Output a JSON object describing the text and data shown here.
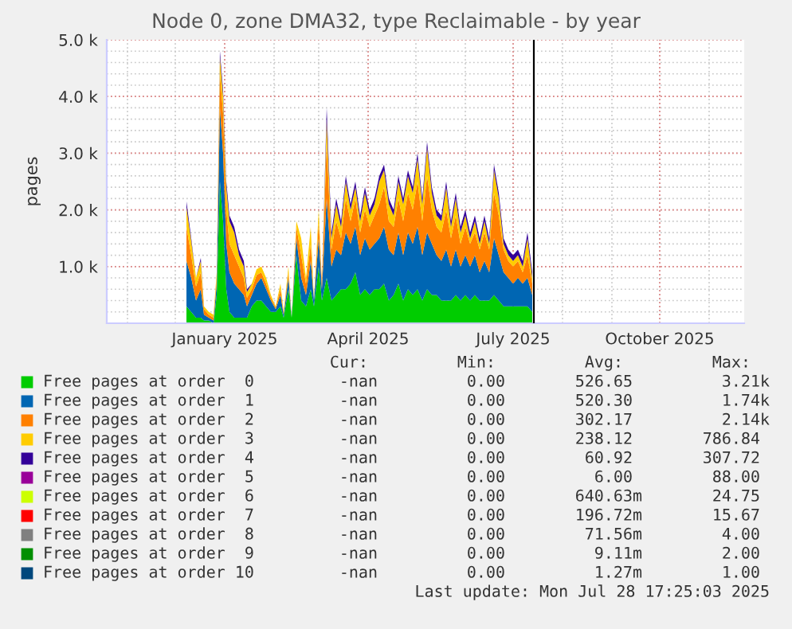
{
  "chart_data": {
    "type": "area",
    "stacked": true,
    "title": "Node 0, zone DMA32, type Reclaimable - by year",
    "ylabel": "pages",
    "x": [
      "2024-12-08",
      "2024-12-11",
      "2024-12-14",
      "2024-12-17",
      "2024-12-19",
      "2024-12-22",
      "2024-12-25",
      "2024-12-27",
      "2024-12-29",
      "2024-12-31",
      "2025-01-02",
      "2025-01-04",
      "2025-01-07",
      "2025-01-10",
      "2025-01-13",
      "2025-01-15",
      "2025-01-18",
      "2025-01-21",
      "2025-01-24",
      "2025-01-27",
      "2025-01-30",
      "2025-02-02",
      "2025-02-05",
      "2025-02-07",
      "2025-02-10",
      "2025-02-12",
      "2025-02-15",
      "2025-02-18",
      "2025-02-21",
      "2025-02-24",
      "2025-02-26",
      "2025-03-01",
      "2025-03-03",
      "2025-03-06",
      "2025-03-09",
      "2025-03-12",
      "2025-03-15",
      "2025-03-18",
      "2025-03-21",
      "2025-03-24",
      "2025-03-27",
      "2025-03-30",
      "2025-04-02",
      "2025-04-05",
      "2025-04-08",
      "2025-04-11",
      "2025-04-14",
      "2025-04-17",
      "2025-04-20",
      "2025-04-23",
      "2025-04-26",
      "2025-04-29",
      "2025-05-02",
      "2025-05-05",
      "2025-05-08",
      "2025-05-11",
      "2025-05-14",
      "2025-05-17",
      "2025-05-20",
      "2025-05-23",
      "2025-05-26",
      "2025-05-29",
      "2025-06-01",
      "2025-06-04",
      "2025-06-07",
      "2025-06-10",
      "2025-06-13",
      "2025-06-16",
      "2025-06-19",
      "2025-06-22",
      "2025-06-25",
      "2025-06-28",
      "2025-07-01",
      "2025-07-04",
      "2025-07-07",
      "2025-07-10",
      "2025-07-13"
    ],
    "series": [
      {
        "name": "Free pages at order  0",
        "color": "#00cc00",
        "values": [
          300,
          200,
          100,
          100,
          50,
          50,
          0,
          500,
          2500,
          1800,
          600,
          200,
          100,
          100,
          100,
          100,
          300,
          400,
          400,
          300,
          200,
          200,
          300,
          100,
          600,
          100,
          1200,
          400,
          300,
          600,
          300,
          1000,
          400,
          800,
          400,
          500,
          600,
          600,
          700,
          900,
          500,
          600,
          500,
          600,
          600,
          700,
          400,
          500,
          700,
          400,
          600,
          500,
          600,
          400,
          600,
          500,
          500,
          400,
          400,
          400,
          500,
          400,
          500,
          400,
          500,
          400,
          400,
          400,
          500,
          400,
          300,
          300,
          300,
          300,
          300,
          300,
          200
        ]
      },
      {
        "name": "Free pages at order  1",
        "color": "#0066b3",
        "values": [
          800,
          600,
          300,
          500,
          100,
          50,
          50,
          200,
          1300,
          1200,
          800,
          700,
          600,
          500,
          400,
          200,
          200,
          300,
          400,
          300,
          200,
          50,
          200,
          50,
          200,
          0,
          300,
          400,
          200,
          500,
          100,
          500,
          200,
          1400,
          600,
          800,
          600,
          1000,
          700,
          800,
          700,
          900,
          800,
          800,
          900,
          1000,
          900,
          700,
          900,
          800,
          1000,
          900,
          1100,
          800,
          1000,
          900,
          700,
          700,
          900,
          600,
          800,
          600,
          700,
          600,
          700,
          500,
          700,
          500,
          1000,
          800,
          600,
          500,
          400,
          500,
          400,
          500,
          300
        ]
      },
      {
        "name": "Free pages at order  2",
        "color": "#ff8000",
        "values": [
          600,
          400,
          250,
          300,
          100,
          50,
          50,
          100,
          600,
          700,
          600,
          500,
          500,
          400,
          300,
          150,
          100,
          150,
          100,
          100,
          50,
          30,
          100,
          30,
          100,
          0,
          200,
          400,
          200,
          300,
          0,
          300,
          100,
          1000,
          300,
          500,
          300,
          600,
          400,
          500,
          400,
          500,
          400,
          500,
          600,
          700,
          500,
          500,
          600,
          600,
          700,
          600,
          800,
          600,
          1000,
          600,
          500,
          500,
          700,
          500,
          600,
          400,
          500,
          400,
          400,
          400,
          500,
          400,
          800,
          700,
          400,
          300,
          300,
          300,
          200,
          400,
          200
        ]
      },
      {
        "name": "Free pages at order  3",
        "color": "#ffcc00",
        "values": [
          350,
          250,
          150,
          200,
          50,
          50,
          50,
          100,
          300,
          300,
          400,
          400,
          400,
          200,
          200,
          100,
          100,
          100,
          100,
          100,
          50,
          20,
          100,
          20,
          100,
          0,
          100,
          300,
          100,
          300,
          0,
          200,
          0,
          400,
          200,
          300,
          200,
          300,
          200,
          200,
          200,
          300,
          200,
          200,
          400,
          300,
          300,
          200,
          300,
          300,
          300,
          300,
          400,
          300,
          500,
          300,
          200,
          200,
          400,
          200,
          300,
          200,
          200,
          100,
          200,
          100,
          200,
          100,
          400,
          300,
          100,
          100,
          100,
          100,
          100,
          300,
          100
        ]
      },
      {
        "name": "Free pages at order  4",
        "color": "#330099",
        "values": [
          100,
          50,
          0,
          50,
          0,
          0,
          0,
          0,
          100,
          100,
          100,
          100,
          100,
          100,
          100,
          50,
          0,
          0,
          0,
          0,
          0,
          0,
          0,
          0,
          0,
          0,
          0,
          0,
          0,
          0,
          0,
          0,
          0,
          200,
          100,
          100,
          100,
          100,
          100,
          100,
          100,
          100,
          100,
          100,
          100,
          100,
          100,
          100,
          100,
          100,
          100,
          100,
          100,
          100,
          100,
          100,
          100,
          100,
          100,
          100,
          100,
          100,
          100,
          100,
          100,
          100,
          100,
          100,
          100,
          100,
          100,
          100,
          100,
          100,
          100,
          100,
          100
        ]
      },
      {
        "name": "Free pages at order  5",
        "color": "#990099",
        "values": [
          null,
          null,
          null,
          null,
          null,
          null,
          null,
          null,
          null,
          null,
          null,
          null,
          null,
          null,
          null,
          null,
          null,
          null,
          null,
          null,
          null,
          null,
          null,
          null,
          null,
          null,
          null,
          null,
          null,
          null,
          null,
          null,
          null,
          null,
          null,
          null,
          null,
          null,
          null,
          null,
          null,
          null,
          null,
          null,
          null,
          null,
          null,
          null,
          null,
          null,
          null,
          null,
          null,
          null,
          null,
          null,
          null,
          null,
          null,
          null,
          null,
          null,
          null,
          null,
          null,
          null,
          null,
          null,
          null,
          null,
          null,
          null,
          null,
          null,
          null,
          null,
          null
        ]
      },
      {
        "name": "Free pages at order  6",
        "color": "#ccff00",
        "values": [
          null,
          null,
          null,
          null,
          null,
          null,
          null,
          null,
          null,
          null,
          null,
          null,
          null,
          null,
          null,
          null,
          null,
          null,
          null,
          null,
          null,
          null,
          null,
          null,
          null,
          null,
          null,
          null,
          null,
          null,
          null,
          null,
          null,
          null,
          null,
          null,
          null,
          null,
          null,
          null,
          null,
          null,
          null,
          null,
          null,
          null,
          null,
          null,
          null,
          null,
          null,
          null,
          null,
          null,
          null,
          null,
          null,
          null,
          null,
          null,
          null,
          null,
          null,
          null,
          null,
          null,
          null,
          null,
          null,
          null,
          null,
          null,
          null,
          null,
          null,
          null,
          null
        ]
      },
      {
        "name": "Free pages at order  7",
        "color": "#ff0000",
        "values": [
          null,
          null,
          null,
          null,
          null,
          null,
          null,
          null,
          null,
          null,
          null,
          null,
          null,
          null,
          null,
          null,
          null,
          null,
          null,
          null,
          null,
          null,
          null,
          null,
          null,
          null,
          null,
          null,
          null,
          null,
          null,
          null,
          null,
          null,
          null,
          null,
          null,
          null,
          null,
          null,
          null,
          null,
          null,
          null,
          null,
          null,
          null,
          null,
          null,
          null,
          null,
          null,
          null,
          null,
          null,
          null,
          null,
          null,
          null,
          null,
          null,
          null,
          null,
          null,
          null,
          null,
          null,
          null,
          null,
          null,
          null,
          null,
          null,
          null,
          null,
          null,
          null
        ]
      },
      {
        "name": "Free pages at order  8",
        "color": "#808080",
        "values": [
          null,
          null,
          null,
          null,
          null,
          null,
          null,
          null,
          null,
          null,
          null,
          null,
          null,
          null,
          null,
          null,
          null,
          null,
          null,
          null,
          null,
          null,
          null,
          null,
          null,
          null,
          null,
          null,
          null,
          null,
          null,
          null,
          null,
          null,
          null,
          null,
          null,
          null,
          null,
          null,
          null,
          null,
          null,
          null,
          null,
          null,
          null,
          null,
          null,
          null,
          null,
          null,
          null,
          null,
          null,
          null,
          null,
          null,
          null,
          null,
          null,
          null,
          null,
          null,
          null,
          null,
          null,
          null,
          null,
          null,
          null,
          null,
          null,
          null,
          null,
          null,
          null
        ]
      },
      {
        "name": "Free pages at order  9",
        "color": "#008f00",
        "values": [
          null,
          null,
          null,
          null,
          null,
          null,
          null,
          null,
          null,
          null,
          null,
          null,
          null,
          null,
          null,
          null,
          null,
          null,
          null,
          null,
          null,
          null,
          null,
          null,
          null,
          null,
          null,
          null,
          null,
          null,
          null,
          null,
          null,
          null,
          null,
          null,
          null,
          null,
          null,
          null,
          null,
          null,
          null,
          null,
          null,
          null,
          null,
          null,
          null,
          null,
          null,
          null,
          null,
          null,
          null,
          null,
          null,
          null,
          null,
          null,
          null,
          null,
          null,
          null,
          null,
          null,
          null,
          null,
          null,
          null,
          null,
          null,
          null,
          null,
          null,
          null,
          null
        ]
      },
      {
        "name": "Free pages at order 10",
        "color": "#00487d",
        "values": [
          null,
          null,
          null,
          null,
          null,
          null,
          null,
          null,
          null,
          null,
          null,
          null,
          null,
          null,
          null,
          null,
          null,
          null,
          null,
          null,
          null,
          null,
          null,
          null,
          null,
          null,
          null,
          null,
          null,
          null,
          null,
          null,
          null,
          null,
          null,
          null,
          null,
          null,
          null,
          null,
          null,
          null,
          null,
          null,
          null,
          null,
          null,
          null,
          null,
          null,
          null,
          null,
          null,
          null,
          null,
          null,
          null,
          null,
          null,
          null,
          null,
          null,
          null,
          null,
          null,
          null,
          null,
          null,
          null,
          null,
          null,
          null,
          null,
          null,
          null,
          null,
          null
        ]
      }
    ],
    "xlim": [
      "2024-10-19",
      "2025-11-23"
    ],
    "xticks": [
      {
        "value": "2025-01-01",
        "label": "January 2025"
      },
      {
        "value": "2025-04-01",
        "label": "April 2025"
      },
      {
        "value": "2025-07-01",
        "label": "July 2025"
      },
      {
        "value": "2025-10-01",
        "label": "October 2025"
      }
    ],
    "ylim": [
      0,
      5000
    ],
    "yticks": [
      {
        "value": 1000,
        "label": "1.0 k"
      },
      {
        "value": 2000,
        "label": "2.0 k"
      },
      {
        "value": 3000,
        "label": "3.0 k"
      },
      {
        "value": 4000,
        "label": "4.0 k"
      },
      {
        "value": 5000,
        "label": "5.0 k"
      }
    ],
    "ref_lines": [
      {
        "axis": "x",
        "value": "2025-07-14",
        "label": null,
        "color": "#000000"
      }
    ],
    "grid": true,
    "legend": "bottom",
    "annotations": [
      "Cur: Min: Avg: Max:",
      "-nan 0.00 526.65 3.21k",
      "-nan 0.00 520.30 1.74k",
      "-nan 0.00 302.17 2.14k",
      "-nan 0.00 238.12 786.84",
      "-nan 0.00 60.92 307.72",
      "-nan 0.00 6.00 88.00",
      "-nan 0.00 640.63m 24.75",
      "-nan 0.00 196.72m 15.67",
      "-nan 0.00 71.56m 4.00",
      "-nan 0.00 9.11m 2.00",
      "-nan 0.00 1.27m 1.00",
      "Last update: Mon Jul 28 17:25:03 2025"
    ]
  }
}
